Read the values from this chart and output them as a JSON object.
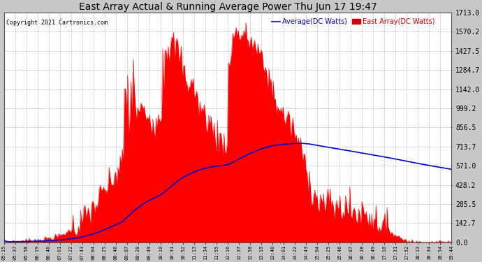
{
  "title": "East Array Actual & Running Average Power Thu Jun 17 19:47",
  "copyright": "Copyright 2021 Cartronics.com",
  "legend_avg": "Average(DC Watts)",
  "legend_east": "East Array(DC Watts)",
  "yticks": [
    0.0,
    142.7,
    285.5,
    428.2,
    571.0,
    713.7,
    856.5,
    999.2,
    1142.0,
    1284.7,
    1427.5,
    1570.2,
    1713.0
  ],
  "bg_color": "#c8c8c8",
  "plot_bg_color": "#ffffff",
  "fill_color": "#ff0000",
  "avg_line_color": "#0000cc",
  "grid_color": "#aaaaaa",
  "title_color": "#000000",
  "copyright_color": "#000000",
  "legend_avg_color": "#0000cc",
  "legend_east_color": "#cc0000",
  "xtick_labels": [
    "05:15",
    "05:37",
    "05:58",
    "06:19",
    "06:40",
    "07:01",
    "07:22",
    "07:43",
    "08:04",
    "08:25",
    "08:46",
    "09:07",
    "09:28",
    "09:49",
    "10:10",
    "10:31",
    "10:52",
    "11:13",
    "11:34",
    "11:55",
    "12:16",
    "12:37",
    "12:58",
    "13:19",
    "13:40",
    "14:01",
    "14:22",
    "14:43",
    "15:04",
    "15:25",
    "15:46",
    "16:07",
    "16:28",
    "16:49",
    "17:10",
    "17:31",
    "17:52",
    "18:13",
    "18:34",
    "18:54",
    "19:44"
  ]
}
